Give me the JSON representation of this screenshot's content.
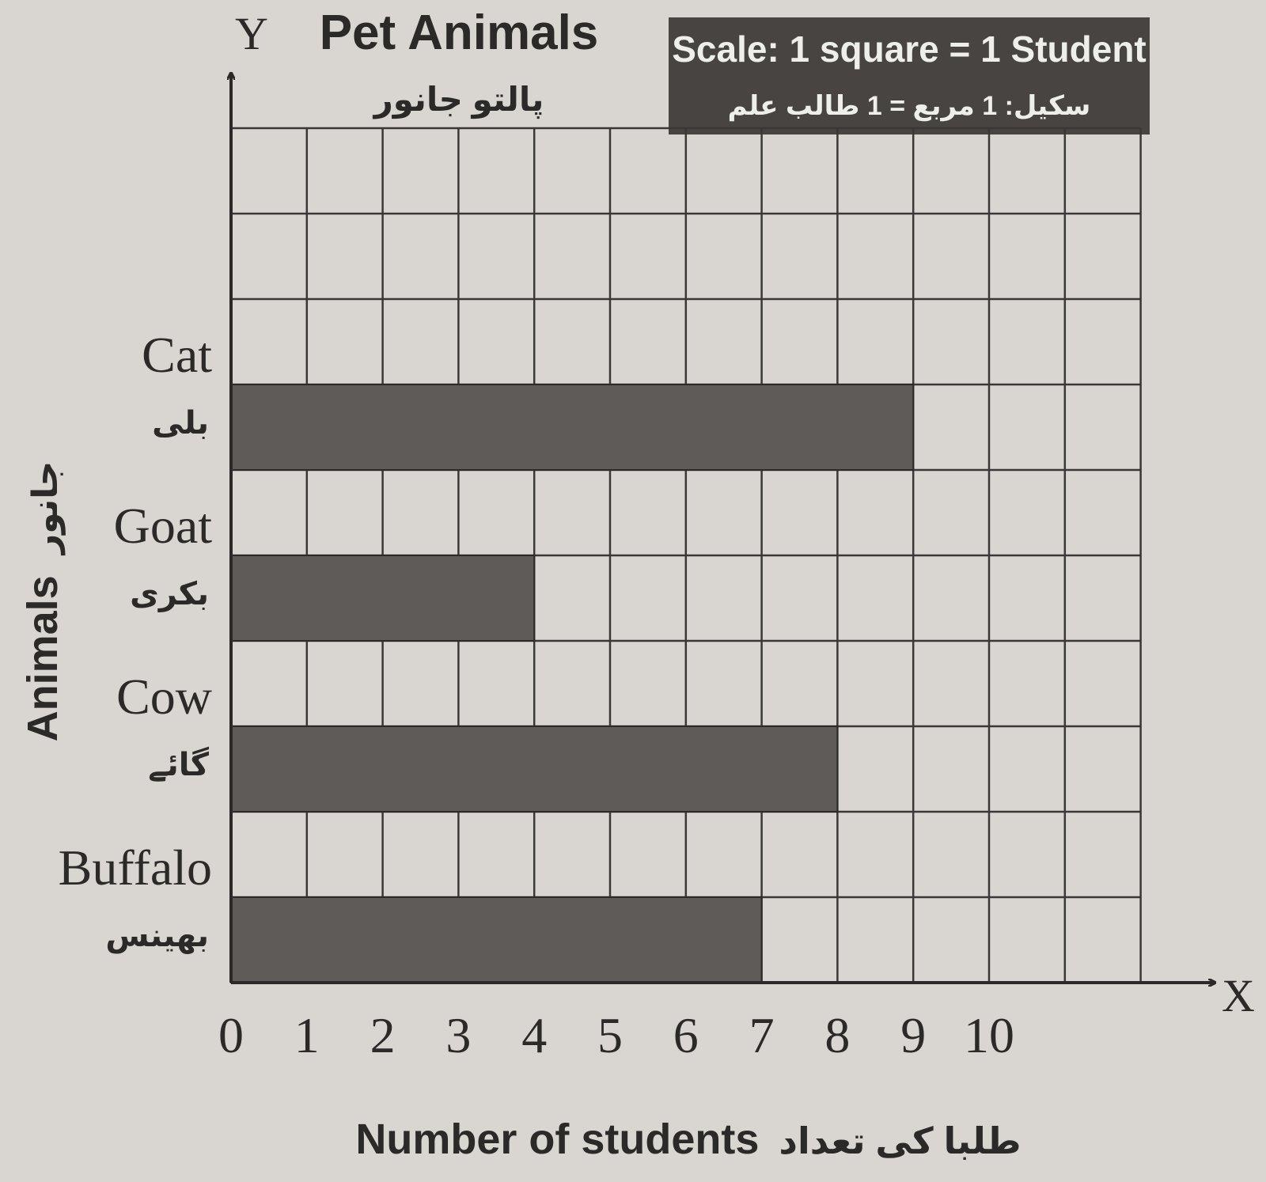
{
  "chart_data": {
    "type": "bar",
    "orientation": "horizontal",
    "title": "Pet Animals",
    "title_urdu": "پالتو جانور",
    "scale_note": "Scale: 1 square = 1 Student",
    "scale_note_urdu": "سکیل: 1 مربع = 1 طالب علم",
    "xlabel": "Number of students",
    "xlabel_urdu": "طلبا کی تعداد",
    "ylabel": "Animals",
    "ylabel_urdu": "جانور",
    "x_axis_letter": "X",
    "y_axis_letter": "Y",
    "categories": [
      "Cat",
      "Goat",
      "Cow",
      "Buffalo"
    ],
    "categories_urdu": [
      "بلی",
      "بکری",
      "گائے",
      "بھینس"
    ],
    "values": [
      9,
      4,
      8,
      7
    ],
    "xticks": [
      "0",
      "1",
      "2",
      "3",
      "4",
      "5",
      "6",
      "7",
      "8",
      "9",
      "10"
    ],
    "xlim": [
      0,
      12
    ],
    "grid": true,
    "bar_color": "#5e5b58"
  }
}
